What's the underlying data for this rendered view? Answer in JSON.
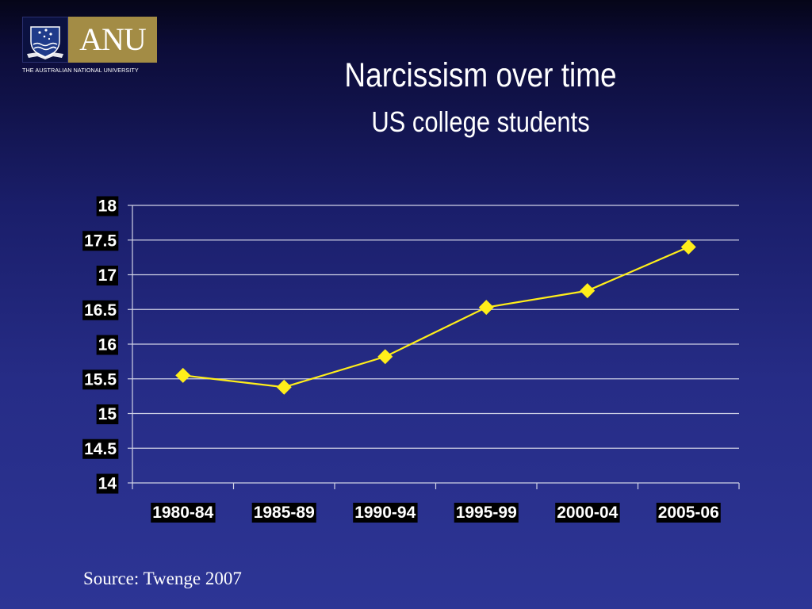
{
  "logo": {
    "wordmark": "ANU",
    "institution": "THE AUSTRALIAN NATIONAL UNIVERSITY",
    "crest_icon": "university-crest-icon"
  },
  "slide": {
    "title": "Narcissism over time",
    "subtitle": "US college students",
    "source": "Source: Twenge 2007"
  },
  "colors": {
    "line": "#ffee1a",
    "marker": "#ffee1a",
    "gridline": "#d0d2e6",
    "label_box": "#000000",
    "text": "#ffffff"
  },
  "chart_data": {
    "type": "line",
    "categories": [
      "1980-84",
      "1985-89",
      "1990-94",
      "1995-99",
      "2000-04",
      "2005-06"
    ],
    "series": [
      {
        "values": [
          15.55,
          15.38,
          15.82,
          16.53,
          16.77,
          17.4
        ]
      }
    ],
    "yticks": [
      "14",
      "14.5",
      "15",
      "15.5",
      "16",
      "16.5",
      "17",
      "17.5",
      "18"
    ],
    "ylim": [
      14,
      18
    ],
    "ystep": 0.5,
    "grid": true,
    "legend": "none",
    "marker": "diamond"
  }
}
